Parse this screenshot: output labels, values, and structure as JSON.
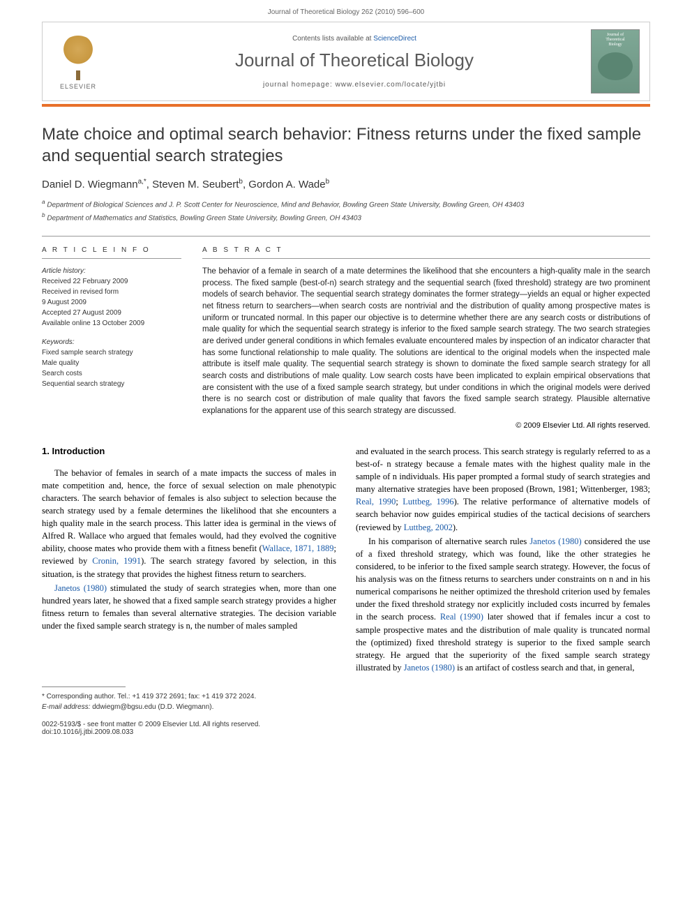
{
  "header": {
    "running_head": "Journal of Theoretical Biology 262 (2010) 596–600"
  },
  "banner": {
    "contents_line_prefix": "Contents lists available at ",
    "contents_line_link": "ScienceDirect",
    "journal_name": "Journal of Theoretical Biology",
    "homepage_prefix": "journal homepage: ",
    "homepage_url": "www.elsevier.com/locate/yjtbi",
    "publisher_name": "ELSEVIER",
    "cover_title_line1": "Journal of",
    "cover_title_line2": "Theoretical",
    "cover_title_line3": "Biology"
  },
  "article": {
    "title": "Mate choice and optimal search behavior: Fitness returns under the fixed sample and sequential search strategies",
    "authors_html": "Daniel D. Wiegmann",
    "author1": "Daniel D. Wiegmann",
    "author1_sup": "a,*",
    "author2": "Steven M. Seubert",
    "author2_sup": "b",
    "author3": "Gordon A. Wade",
    "author3_sup": "b",
    "affiliation_a": "Department of Biological Sciences and J. P. Scott Center for Neuroscience, Mind and Behavior, Bowling Green State University, Bowling Green, OH 43403",
    "affiliation_b": "Department of Mathematics and Statistics, Bowling Green State University, Bowling Green, OH 43403"
  },
  "article_info": {
    "heading": "A R T I C L E   I N F O",
    "history_label": "Article history:",
    "received": "Received 22 February 2009",
    "revised": "Received in revised form",
    "revised_date": "9 August 2009",
    "accepted": "Accepted 27 August 2009",
    "online": "Available online 13 October 2009",
    "keywords_label": "Keywords:",
    "kw1": "Fixed sample search strategy",
    "kw2": "Male quality",
    "kw3": "Search costs",
    "kw4": "Sequential search strategy"
  },
  "abstract": {
    "heading": "A B S T R A C T",
    "text": "The behavior of a female in search of a mate determines the likelihood that she encounters a high-quality male in the search process. The fixed sample (best-of-n) search strategy and the sequential search (fixed threshold) strategy are two prominent models of search behavior. The sequential search strategy dominates the former strategy—yields an equal or higher expected net fitness return to searchers—when search costs are nontrivial and the distribution of quality among prospective mates is uniform or truncated normal. In this paper our objective is to determine whether there are any search costs or distributions of male quality for which the sequential search strategy is inferior to the fixed sample search strategy. The two search strategies are derived under general conditions in which females evaluate encountered males by inspection of an indicator character that has some functional relationship to male quality. The solutions are identical to the original models when the inspected male attribute is itself male quality. The sequential search strategy is shown to dominate the fixed sample search strategy for all search costs and distributions of male quality. Low search costs have been implicated to explain empirical observations that are consistent with the use of a fixed sample search strategy, but under conditions in which the original models were derived there is no search cost or distribution of male quality that favors the fixed sample search strategy. Plausible alternative explanations for the apparent use of this search strategy are discussed.",
    "copyright": "© 2009 Elsevier Ltd. All rights reserved."
  },
  "body": {
    "section_heading": "1. Introduction",
    "col1_p1": "The behavior of females in search of a mate impacts the success of males in mate competition and, hence, the force of sexual selection on male phenotypic characters. The search behavior of females is also subject to selection because the search strategy used by a female determines the likelihood that she encounters a high quality male in the search process. This latter idea is germinal in the views of Alfred R. Wallace who argued that females would, had they evolved the cognitive ability, choose mates who provide them with a fitness benefit (",
    "col1_p1_ref1": "Wallace, 1871, 1889",
    "col1_p1_mid": "; reviewed by ",
    "col1_p1_ref2": "Cronin, 1991",
    "col1_p1_end": "). The search strategy favored by selection, in this situation, is the strategy that provides the highest fitness return to searchers.",
    "col1_p2_ref": "Janetos (1980)",
    "col1_p2": " stimulated the study of search strategies when, more than one hundred years later, he showed that a fixed sample search strategy provides a higher fitness return to females than several alternative strategies. The decision variable under the fixed sample search strategy is n, the number of males sampled",
    "col2_p1_a": "and evaluated in the search process. This search strategy is regularly referred to as a best-of- n strategy because a female mates with the highest quality male in the sample of n individuals. His paper prompted a formal study of search strategies and many alternative strategies have been proposed (Brown, 1981; Wittenberger, 1983; ",
    "col2_p1_ref1": "Real, 1990",
    "col2_p1_b": "; ",
    "col2_p1_ref2": "Luttbeg, 1996",
    "col2_p1_c": "). The relative performance of alternative models of search behavior now guides empirical studies of the tactical decisions of searchers (reviewed by ",
    "col2_p1_ref3": "Luttbeg, 2002",
    "col2_p1_d": ").",
    "col2_p2_a": "In his comparison of alternative search rules ",
    "col2_p2_ref1": "Janetos (1980)",
    "col2_p2_b": " considered the use of a fixed threshold strategy, which was found, like the other strategies he considered, to be inferior to the fixed sample search strategy. However, the focus of his analysis was on the fitness returns to searchers under constraints on n and in his numerical comparisons he neither optimized the threshold criterion used by females under the fixed threshold strategy nor explicitly included costs incurred by females in the search process. ",
    "col2_p2_ref2": "Real (1990)",
    "col2_p2_c": " later showed that if females incur a cost to sample prospective mates and the distribution of male quality is truncated normal the (optimized) fixed threshold strategy is superior to the fixed sample search strategy. He argued that the superiority of the fixed sample search strategy illustrated by ",
    "col2_p2_ref3": "Janetos (1980)",
    "col2_p2_d": " is an artifact of costless search and that, in general,"
  },
  "footnotes": {
    "corr": "* Corresponding author. Tel.: +1 419 372 2691; fax: +1 419 372 2024.",
    "email_label": "E-mail address:",
    "email": "ddwiegm@bgsu.edu (D.D. Wiegmann)."
  },
  "footer": {
    "issn_line": "0022-5193/$ - see front matter © 2009 Elsevier Ltd. All rights reserved.",
    "doi_line": "doi:10.1016/j.jtbi.2009.08.033"
  },
  "colors": {
    "accent_orange": "#e8702a",
    "link_blue": "#1a5aa8",
    "cover_green": "#7fa896",
    "text_gray": "#5a5a5a"
  },
  "typography": {
    "title_fontsize": 24,
    "journal_name_fontsize": 26,
    "body_fontsize": 12.5,
    "abstract_fontsize": 11.5,
    "footnote_fontsize": 10
  }
}
